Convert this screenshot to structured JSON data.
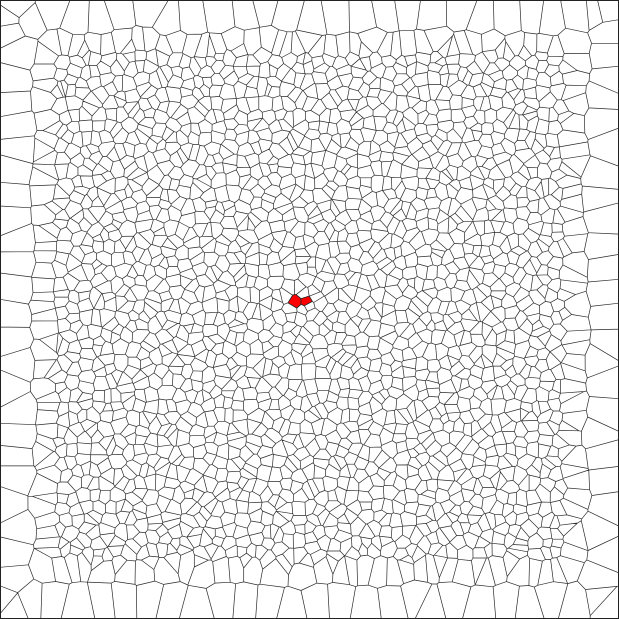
{
  "board": {
    "background_color": "#ffffff",
    "edge_color": "#2b2b2b",
    "highlight_color": "#ff0000",
    "highlighted_cell_count": 2
  }
}
